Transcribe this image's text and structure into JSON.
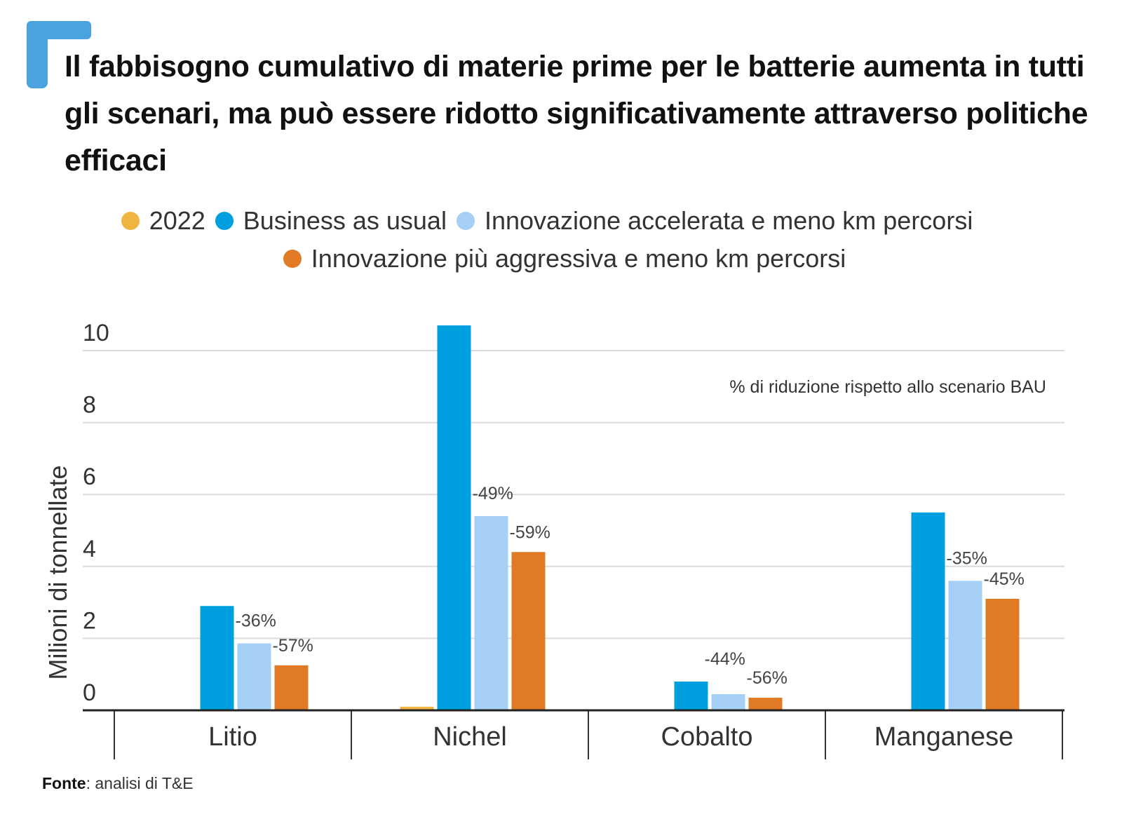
{
  "title": "Il fabbisogno cumulativo di materie prime per le batterie aumenta in tutti gli scenari, ma può essere ridotto significativamente attraverso politiche efficaci",
  "accent_color": "#4aa3df",
  "legend": [
    {
      "label": "2022",
      "color": "#f0b440"
    },
    {
      "label": "Business as usual",
      "color": "#00a0e0"
    },
    {
      "label": "Innovazione accelerata e meno km percorsi",
      "color": "#a6cff5"
    },
    {
      "label": "Innovazione più aggressiva e meno km percorsi",
      "color": "#e07a24"
    }
  ],
  "source": {
    "label": "Fonte",
    "text": ": analisi di T&E"
  },
  "chart_data": {
    "type": "bar",
    "title": "Il fabbisogno cumulativo di materie prime per le batterie aumenta in tutti gli scenari, ma può essere ridotto significativamente attraverso politiche efficaci",
    "xlabel": "",
    "ylabel": "Milioni di tonnellate",
    "ylim": [
      0,
      10
    ],
    "yticks": [
      0,
      2,
      4,
      6,
      8,
      10
    ],
    "grid": true,
    "legend_position": "top",
    "categories": [
      "Litio",
      "Nichel",
      "Cobalto",
      "Manganese"
    ],
    "series": [
      {
        "name": "2022",
        "color": "#f0b440",
        "values": [
          0.02,
          0.1,
          0.01,
          0.01
        ]
      },
      {
        "name": "Business as usual",
        "color": "#00a0e0",
        "values": [
          2.9,
          10.7,
          0.8,
          5.5
        ]
      },
      {
        "name": "Innovazione accelerata e meno km percorsi",
        "color": "#a6cff5",
        "values": [
          1.86,
          5.4,
          0.45,
          3.6
        ]
      },
      {
        "name": "Innovazione più aggressiva e meno km percorsi",
        "color": "#e07a24",
        "values": [
          1.25,
          4.4,
          0.35,
          3.1
        ]
      }
    ],
    "annotations": {
      "note": "% di riduzione rispetto allo scenario BAU",
      "reductions": [
        {
          "category": "Litio",
          "accelerata": "-36%",
          "aggressiva": "-57%"
        },
        {
          "category": "Nichel",
          "accelerata": "-49%",
          "aggressiva": "-59%"
        },
        {
          "category": "Cobalto",
          "accelerata": "-44%",
          "aggressiva": "-56%"
        },
        {
          "category": "Manganese",
          "accelerata": "-35%",
          "aggressiva": "-45%"
        }
      ]
    }
  }
}
